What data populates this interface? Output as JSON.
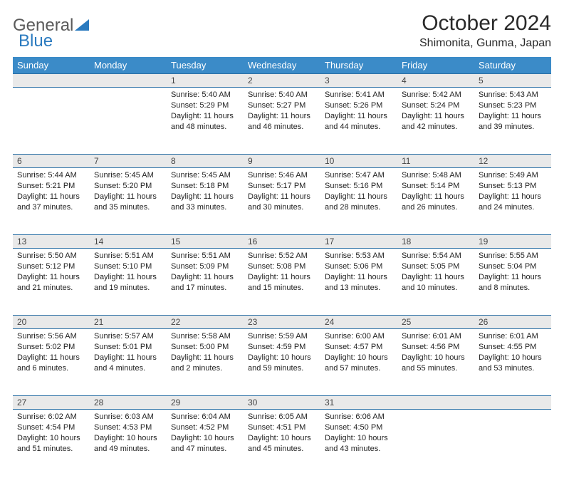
{
  "brand": {
    "word1": "General",
    "word2": "Blue"
  },
  "title": {
    "month": "October 2024",
    "location": "Shimonita, Gunma, Japan"
  },
  "colors": {
    "header_bg": "#3b8bc8",
    "header_text": "#ffffff",
    "daynum_bg": "#e9e9e9",
    "border": "#2a6fa5",
    "body_text": "#222222",
    "brand_gray": "#5a5a5a",
    "brand_blue": "#2a7abf"
  },
  "day_names": [
    "Sunday",
    "Monday",
    "Tuesday",
    "Wednesday",
    "Thursday",
    "Friday",
    "Saturday"
  ],
  "weeks": [
    [
      null,
      null,
      {
        "n": "1",
        "sunrise": "5:40 AM",
        "sunset": "5:29 PM",
        "daylight": "11 hours and 48 minutes."
      },
      {
        "n": "2",
        "sunrise": "5:40 AM",
        "sunset": "5:27 PM",
        "daylight": "11 hours and 46 minutes."
      },
      {
        "n": "3",
        "sunrise": "5:41 AM",
        "sunset": "5:26 PM",
        "daylight": "11 hours and 44 minutes."
      },
      {
        "n": "4",
        "sunrise": "5:42 AM",
        "sunset": "5:24 PM",
        "daylight": "11 hours and 42 minutes."
      },
      {
        "n": "5",
        "sunrise": "5:43 AM",
        "sunset": "5:23 PM",
        "daylight": "11 hours and 39 minutes."
      }
    ],
    [
      {
        "n": "6",
        "sunrise": "5:44 AM",
        "sunset": "5:21 PM",
        "daylight": "11 hours and 37 minutes."
      },
      {
        "n": "7",
        "sunrise": "5:45 AM",
        "sunset": "5:20 PM",
        "daylight": "11 hours and 35 minutes."
      },
      {
        "n": "8",
        "sunrise": "5:45 AM",
        "sunset": "5:18 PM",
        "daylight": "11 hours and 33 minutes."
      },
      {
        "n": "9",
        "sunrise": "5:46 AM",
        "sunset": "5:17 PM",
        "daylight": "11 hours and 30 minutes."
      },
      {
        "n": "10",
        "sunrise": "5:47 AM",
        "sunset": "5:16 PM",
        "daylight": "11 hours and 28 minutes."
      },
      {
        "n": "11",
        "sunrise": "5:48 AM",
        "sunset": "5:14 PM",
        "daylight": "11 hours and 26 minutes."
      },
      {
        "n": "12",
        "sunrise": "5:49 AM",
        "sunset": "5:13 PM",
        "daylight": "11 hours and 24 minutes."
      }
    ],
    [
      {
        "n": "13",
        "sunrise": "5:50 AM",
        "sunset": "5:12 PM",
        "daylight": "11 hours and 21 minutes."
      },
      {
        "n": "14",
        "sunrise": "5:51 AM",
        "sunset": "5:10 PM",
        "daylight": "11 hours and 19 minutes."
      },
      {
        "n": "15",
        "sunrise": "5:51 AM",
        "sunset": "5:09 PM",
        "daylight": "11 hours and 17 minutes."
      },
      {
        "n": "16",
        "sunrise": "5:52 AM",
        "sunset": "5:08 PM",
        "daylight": "11 hours and 15 minutes."
      },
      {
        "n": "17",
        "sunrise": "5:53 AM",
        "sunset": "5:06 PM",
        "daylight": "11 hours and 13 minutes."
      },
      {
        "n": "18",
        "sunrise": "5:54 AM",
        "sunset": "5:05 PM",
        "daylight": "11 hours and 10 minutes."
      },
      {
        "n": "19",
        "sunrise": "5:55 AM",
        "sunset": "5:04 PM",
        "daylight": "11 hours and 8 minutes."
      }
    ],
    [
      {
        "n": "20",
        "sunrise": "5:56 AM",
        "sunset": "5:02 PM",
        "daylight": "11 hours and 6 minutes."
      },
      {
        "n": "21",
        "sunrise": "5:57 AM",
        "sunset": "5:01 PM",
        "daylight": "11 hours and 4 minutes."
      },
      {
        "n": "22",
        "sunrise": "5:58 AM",
        "sunset": "5:00 PM",
        "daylight": "11 hours and 2 minutes."
      },
      {
        "n": "23",
        "sunrise": "5:59 AM",
        "sunset": "4:59 PM",
        "daylight": "10 hours and 59 minutes."
      },
      {
        "n": "24",
        "sunrise": "6:00 AM",
        "sunset": "4:57 PM",
        "daylight": "10 hours and 57 minutes."
      },
      {
        "n": "25",
        "sunrise": "6:01 AM",
        "sunset": "4:56 PM",
        "daylight": "10 hours and 55 minutes."
      },
      {
        "n": "26",
        "sunrise": "6:01 AM",
        "sunset": "4:55 PM",
        "daylight": "10 hours and 53 minutes."
      }
    ],
    [
      {
        "n": "27",
        "sunrise": "6:02 AM",
        "sunset": "4:54 PM",
        "daylight": "10 hours and 51 minutes."
      },
      {
        "n": "28",
        "sunrise": "6:03 AM",
        "sunset": "4:53 PM",
        "daylight": "10 hours and 49 minutes."
      },
      {
        "n": "29",
        "sunrise": "6:04 AM",
        "sunset": "4:52 PM",
        "daylight": "10 hours and 47 minutes."
      },
      {
        "n": "30",
        "sunrise": "6:05 AM",
        "sunset": "4:51 PM",
        "daylight": "10 hours and 45 minutes."
      },
      {
        "n": "31",
        "sunrise": "6:06 AM",
        "sunset": "4:50 PM",
        "daylight": "10 hours and 43 minutes."
      },
      null,
      null
    ]
  ],
  "labels": {
    "sunrise": "Sunrise:",
    "sunset": "Sunset:",
    "daylight": "Daylight:"
  }
}
